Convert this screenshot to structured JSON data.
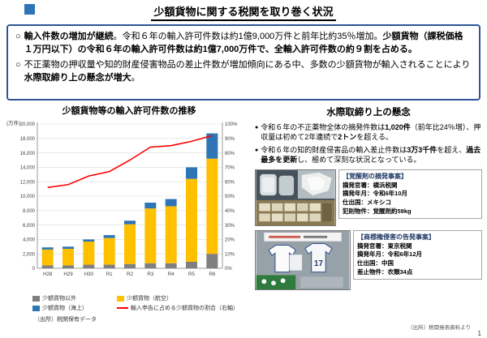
{
  "slide": {
    "title": "少額貨物に関する税関を取り巻く状況",
    "footer_source": "（出所）税関発表資料より",
    "page_number": "1"
  },
  "summary_box": {
    "bullet_marker": "○",
    "bullet1_runs": [
      {
        "t": "輸入件数の増加が継続",
        "b": true
      },
      {
        "t": "。令和６年の輸入許可件数は約1億9,000万件と前年比約35％増加。",
        "b": false
      },
      {
        "t": "少額貨物（課税価格１万円以下）の令和６年の輸入許可件数は約1億7,000万件で、全輸入許可件数の約９割を占める。",
        "b": true
      }
    ],
    "bullet2_runs": [
      {
        "t": "不正薬物の押収量や知的財産侵害物品の差止件数が増加傾向にある中、多数の少額貨物が輸入されることにより",
        "b": false
      },
      {
        "t": "水際取締り上の懸念が増大",
        "b": true
      },
      {
        "t": "。",
        "b": false
      }
    ]
  },
  "left": {
    "source": "（出所）税関保有データ"
  },
  "chart_data": {
    "type": "bar",
    "subtype": "stacked-bars-with-line",
    "title": "少額貨物等の輸入許可件数の推移",
    "unit_left": "(万件)",
    "categories": [
      "H28",
      "H29",
      "H30",
      "R1",
      "R2",
      "R3",
      "R4",
      "R5",
      "R6"
    ],
    "ylim_left": [
      0,
      20000
    ],
    "ytick_step_left": 2000,
    "ylim_right": [
      0,
      100
    ],
    "ytick_step_right": 10,
    "grid": true,
    "legend_position": "bottom",
    "series": [
      {
        "name": "少額貨物以外",
        "color": "#7f7f7f",
        "values": [
          400,
          400,
          500,
          500,
          600,
          700,
          700,
          900,
          2000
        ]
      },
      {
        "name": "少額貨物（航空）",
        "color": "#ffc000",
        "values": [
          2200,
          2300,
          3200,
          3700,
          5500,
          7600,
          7900,
          11500,
          13200
        ]
      },
      {
        "name": "少額貨物（海上）",
        "color": "#2e75b6",
        "values": [
          300,
          300,
          300,
          400,
          500,
          800,
          1000,
          1600,
          3500
        ]
      }
    ],
    "line": {
      "name": "輸入申告に占める少額貨物の割合（右軸）",
      "color": "#ff0000",
      "values": [
        56,
        58,
        64,
        67,
        75,
        84,
        85,
        88,
        92
      ]
    }
  },
  "right": {
    "title": "水際取締り上の懸念",
    "bullet_marker": "●",
    "bullet1_runs": [
      {
        "t": "令和６年の不正薬物全体の摘発件数は",
        "b": false
      },
      {
        "t": "1,020件",
        "b": true
      },
      {
        "t": "（前年比24％増）、押収量は初めて2年連続で",
        "b": false
      },
      {
        "t": "2トン",
        "b": true
      },
      {
        "t": "を超える。",
        "b": false
      }
    ],
    "bullet2_runs": [
      {
        "t": "令和６年の知的財産侵害品の輸入差止件数は",
        "b": false
      },
      {
        "t": "3万3千件",
        "b": true
      },
      {
        "t": "を超え、",
        "b": false
      },
      {
        "t": "過去最多を更新",
        "b": true
      },
      {
        "t": "し、極めて深刻な状況となっている。",
        "b": false
      }
    ],
    "case1": {
      "title": "【覚醒剤の摘発事案】",
      "lines": [
        "摘発官署：横浜税関",
        "摘発年月：令和6年10月",
        "仕出国：メキシコ",
        "犯則物件：覚醒剤約59kg"
      ]
    },
    "case2": {
      "title": "【商標権侵害の告発事案】",
      "lines": [
        "摘発官署：東京税関",
        "摘発年月：令和6年12月",
        "仕出国：中国",
        "差止物件：衣類34点"
      ]
    }
  }
}
